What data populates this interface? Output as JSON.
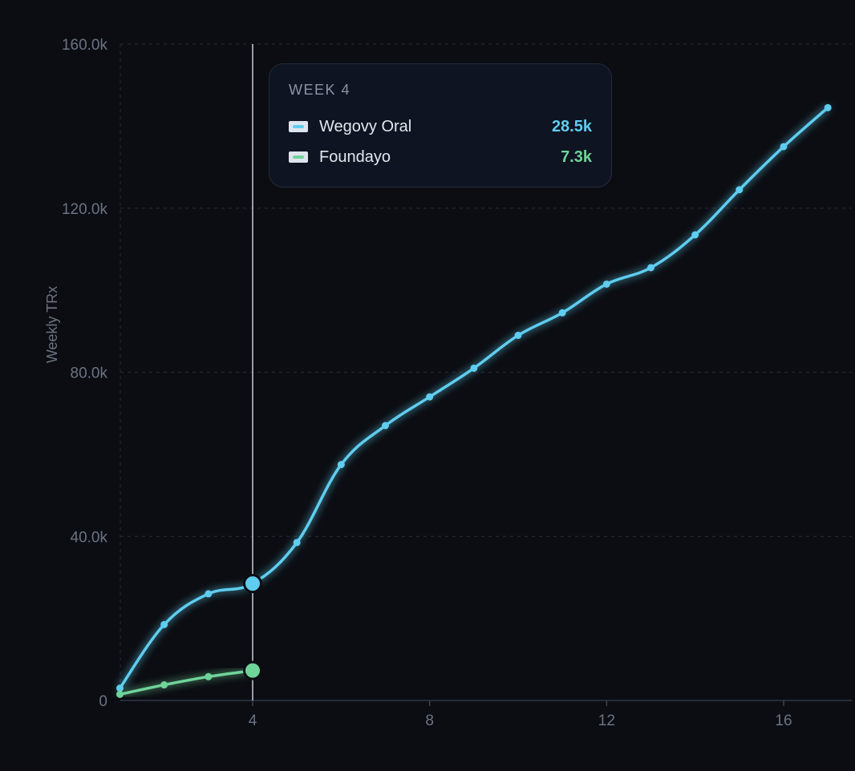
{
  "chart_data": {
    "type": "line",
    "ylabel": "Weekly TRx",
    "xlabel": "",
    "title": "",
    "x_ticks": [
      4,
      8,
      12,
      16
    ],
    "y_ticks": [
      0,
      40000,
      80000,
      120000,
      160000
    ],
    "y_tick_labels": [
      "0",
      "40.0k",
      "80.0k",
      "120.0k",
      "160.0k"
    ],
    "xlim": [
      1,
      17.8
    ],
    "ylim": [
      0,
      160000
    ],
    "grid": "horizontal-dashed",
    "series": [
      {
        "name": "Wegovy Oral",
        "color": "#5fcdef",
        "x": [
          1,
          2,
          3,
          4,
          5,
          6,
          7,
          8,
          9,
          10,
          11,
          12,
          13,
          14,
          15,
          16,
          17
        ],
        "y": [
          3000,
          18500,
          26000,
          28500,
          38500,
          57500,
          67000,
          74000,
          81000,
          89000,
          94500,
          101500,
          105500,
          113500,
          124500,
          135000,
          144500
        ]
      },
      {
        "name": "Foundayo",
        "color": "#6fd49a",
        "x": [
          1,
          2,
          3,
          4
        ],
        "y": [
          1500,
          3800,
          5800,
          7300
        ]
      }
    ],
    "hover": {
      "x": 4,
      "title": "WEEK 4",
      "rows": [
        {
          "name": "Wegovy Oral",
          "value": "28.5k",
          "color": "#5fcdef"
        },
        {
          "name": "Foundayo",
          "value": "7.3k",
          "color": "#6fd49a"
        }
      ]
    }
  }
}
